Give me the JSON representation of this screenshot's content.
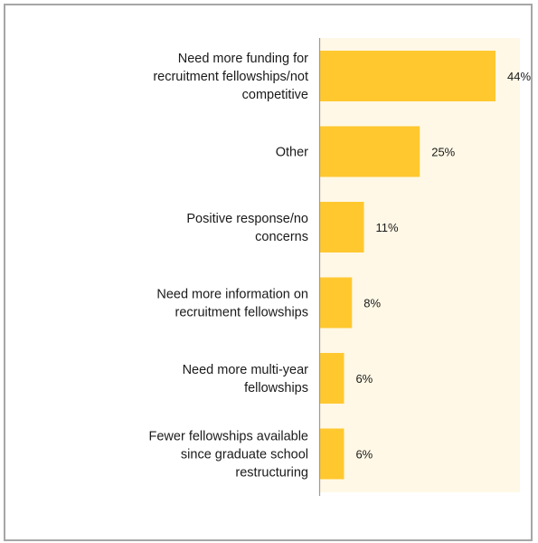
{
  "chart_data": {
    "type": "bar",
    "orientation": "horizontal",
    "categories": [
      [
        "Need more funding for",
        "recruitment fellowships/not",
        "competitive"
      ],
      [
        "Other"
      ],
      [
        "Positive response/no",
        "concerns"
      ],
      [
        "Need more information on",
        "recruitment fellowships"
      ],
      [
        "Need more multi-year",
        "fellowships"
      ],
      [
        "Fewer fellowships available",
        "since graduate school",
        "restructuring"
      ]
    ],
    "values": [
      44,
      25,
      11,
      8,
      6,
      6
    ],
    "value_labels": [
      "44%",
      "25%",
      "11%",
      "8%",
      "6%",
      "6%"
    ],
    "unit": "%",
    "xlim": [
      0,
      60
    ],
    "grid": false,
    "legend": "none"
  },
  "colors": {
    "bar": "#FFC82F",
    "plot_background": "#FFF8E6",
    "axis": "#9a9a9a",
    "frame": "#a6a6a6"
  }
}
